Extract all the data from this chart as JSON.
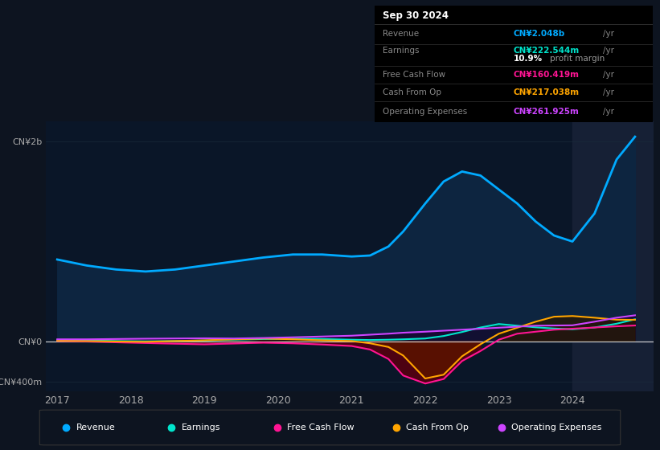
{
  "bg_color": "#0d1420",
  "plot_bg_color": "#0a1628",
  "title_box_date": "Sep 30 2024",
  "ylabel_top": "CN¥2b",
  "ylabel_zero": "CN¥0",
  "ylabel_bottom": "-CN¥400m",
  "years": [
    2017.0,
    2017.4,
    2017.8,
    2018.2,
    2018.6,
    2019.0,
    2019.4,
    2019.8,
    2020.2,
    2020.6,
    2021.0,
    2021.25,
    2021.5,
    2021.7,
    2022.0,
    2022.25,
    2022.5,
    2022.75,
    2023.0,
    2023.25,
    2023.5,
    2023.75,
    2024.0,
    2024.3,
    2024.6,
    2024.85
  ],
  "revenue": [
    820,
    760,
    720,
    700,
    720,
    760,
    800,
    840,
    870,
    870,
    850,
    860,
    950,
    1100,
    1380,
    1600,
    1700,
    1660,
    1520,
    1380,
    1200,
    1060,
    1000,
    1280,
    1820,
    2048
  ],
  "earnings": [
    15,
    10,
    5,
    2,
    5,
    10,
    18,
    25,
    28,
    25,
    18,
    15,
    18,
    22,
    30,
    55,
    95,
    140,
    175,
    158,
    142,
    130,
    122,
    140,
    178,
    222
  ],
  "free_cash_flow": [
    5,
    0,
    -8,
    -15,
    -22,
    -28,
    -20,
    -12,
    -18,
    -30,
    -45,
    -80,
    -175,
    -340,
    -420,
    -375,
    -195,
    -95,
    18,
    78,
    98,
    118,
    128,
    140,
    152,
    160
  ],
  "cash_from_op": [
    8,
    5,
    0,
    -3,
    5,
    12,
    22,
    30,
    22,
    12,
    5,
    -18,
    -55,
    -140,
    -370,
    -332,
    -148,
    -28,
    78,
    138,
    198,
    248,
    255,
    238,
    218,
    217
  ],
  "operating_expenses": [
    22,
    22,
    25,
    28,
    30,
    32,
    30,
    35,
    42,
    50,
    58,
    68,
    78,
    88,
    98,
    108,
    118,
    128,
    138,
    148,
    158,
    160,
    162,
    198,
    238,
    262
  ],
  "revenue_color": "#00aaff",
  "revenue_fill": "#0d2540",
  "earnings_color": "#00e5cc",
  "free_cash_flow_color": "#ff1493",
  "cash_from_op_color": "#ffa500",
  "operating_expenses_color": "#cc44ff",
  "grid_color": "#1a2a3a",
  "zero_line_color": "#dddddd",
  "highlight_x_start": 2024.0,
  "highlight_color": "#162035",
  "ylim_min": -500,
  "ylim_max": 2200,
  "xmin": 2016.85,
  "xmax": 2025.1,
  "xtick_years": [
    2017,
    2018,
    2019,
    2020,
    2021,
    2022,
    2023,
    2024
  ],
  "legend": [
    {
      "label": "Revenue",
      "color": "#00aaff"
    },
    {
      "label": "Earnings",
      "color": "#00e5cc"
    },
    {
      "label": "Free Cash Flow",
      "color": "#ff1493"
    },
    {
      "label": "Cash From Op",
      "color": "#ffa500"
    },
    {
      "label": "Operating Expenses",
      "color": "#cc44ff"
    }
  ],
  "tooltip_rows": [
    {
      "label": "Revenue",
      "value": "CN¥2.048b",
      "value_color": "#00aaff",
      "suffix": " /yr"
    },
    {
      "label": "Earnings",
      "value": "CN¥222.544m",
      "value_color": "#00e5cc",
      "suffix": " /yr",
      "sub": "10.9% profit margin"
    },
    {
      "label": "Free Cash Flow",
      "value": "CN¥160.419m",
      "value_color": "#ff1493",
      "suffix": " /yr"
    },
    {
      "label": "Cash From Op",
      "value": "CN¥217.038m",
      "value_color": "#ffa500",
      "suffix": " /yr"
    },
    {
      "label": "Operating Expenses",
      "value": "CN¥261.925m",
      "value_color": "#cc44ff",
      "suffix": " /yr"
    }
  ]
}
